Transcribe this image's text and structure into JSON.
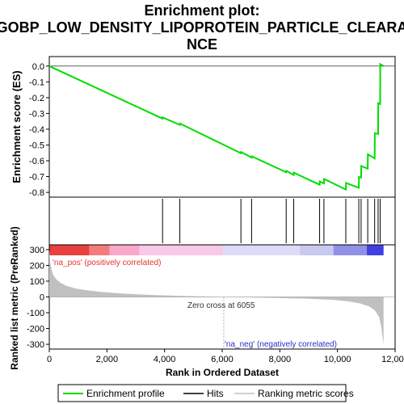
{
  "chart_data": {
    "type": "line",
    "title_line1": "Enrichment plot:",
    "title_line2": "GOBP_LOW_DENSITY_LIPOPROTEIN_PARTICLE_CLEARA",
    "title_line3": "NCE",
    "top_panel": {
      "ylabel": "Enrichment score (ES)",
      "ylim": [
        -0.82,
        0.05
      ],
      "yticks": [
        0.0,
        -0.1,
        -0.2,
        -0.3,
        -0.4,
        -0.5,
        -0.6,
        -0.7,
        -0.8
      ],
      "ytick_labels": [
        "0.0",
        "-0.1",
        "-0.2",
        "-0.3",
        "-0.4",
        "-0.5",
        "-0.6",
        "-0.7",
        "-0.8"
      ],
      "series": [
        {
          "name": "Enrichment profile",
          "color": "#00dd00",
          "x": [
            0,
            3930,
            3935,
            4530,
            4535,
            6650,
            6655,
            7020,
            7025,
            8220,
            8225,
            8480,
            8485,
            9380,
            9385,
            9530,
            9535,
            10290,
            10295,
            10740,
            10745,
            10820,
            10825,
            11050,
            11055,
            11290,
            11295,
            11410,
            11415,
            11480,
            11485,
            11600
          ],
          "values": [
            0.0,
            -0.333,
            -0.325,
            -0.372,
            -0.364,
            -0.552,
            -0.544,
            -0.58,
            -0.572,
            -0.672,
            -0.664,
            -0.69,
            -0.675,
            -0.752,
            -0.731,
            -0.744,
            -0.715,
            -0.782,
            -0.74,
            -0.771,
            -0.703,
            -0.706,
            -0.633,
            -0.65,
            -0.559,
            -0.585,
            -0.425,
            -0.43,
            -0.235,
            -0.24,
            0.012,
            0.0
          ]
        }
      ]
    },
    "hits": {
      "name": "Hits",
      "color": "#000000",
      "x": [
        3930,
        4530,
        6650,
        7020,
        8220,
        8480,
        9380,
        9530,
        10290,
        10740,
        10820,
        11050,
        11290,
        11410,
        11480
      ]
    },
    "ranking_panel": {
      "name": "Ranking metric scores",
      "color": "#c0c0c0",
      "ylabel": "Ranked list metric (PreRanked)",
      "xlabel": "Rank in Ordered Dataset",
      "ylim": [
        -320,
        320
      ],
      "yticks": [
        300,
        200,
        100,
        0,
        -100,
        -200,
        -300
      ],
      "ytick_labels": [
        "300",
        "200",
        "100",
        "0",
        "-100",
        "-200",
        "-300"
      ],
      "xlim": [
        0,
        12000
      ],
      "xticks": [
        0,
        2000,
        4000,
        6000,
        8000,
        10000,
        12000
      ],
      "xtick_labels": [
        "0",
        "2,000",
        "4,000",
        "6,000",
        "8,000",
        "10,000",
        "12,000"
      ],
      "n_genes": 11600,
      "profile_x": [
        0,
        30,
        80,
        150,
        250,
        400,
        600,
        900,
        1300,
        1800,
        2500,
        3500,
        4500,
        5500,
        6055,
        7000,
        8000,
        9000,
        9800,
        10400,
        10800,
        11100,
        11300,
        11450,
        11520,
        11560,
        11600
      ],
      "profile_y": [
        300,
        220,
        170,
        135,
        110,
        88,
        70,
        54,
        42,
        32,
        22,
        13,
        7,
        3,
        0,
        -3,
        -7,
        -12,
        -18,
        -28,
        -42,
        -60,
        -85,
        -130,
        -190,
        -250,
        -300
      ],
      "annotations": {
        "pos": "'na_pos' (positively correlated)",
        "neg": "'na_neg' (negatively correlated)",
        "zero_cross": "Zero cross at 6055",
        "zero_cross_x": 6055
      }
    },
    "legend": {
      "entries": [
        "Enrichment profile",
        "Hits",
        "Ranking metric scores"
      ],
      "placement": "bottom"
    },
    "colorbar_colors": [
      "#e8403f",
      "#f37b7b",
      "#f8a8c8",
      "#f8c8e8",
      "#dcdcf8",
      "#c8c8f0",
      "#9090e8",
      "#4040e0"
    ]
  }
}
